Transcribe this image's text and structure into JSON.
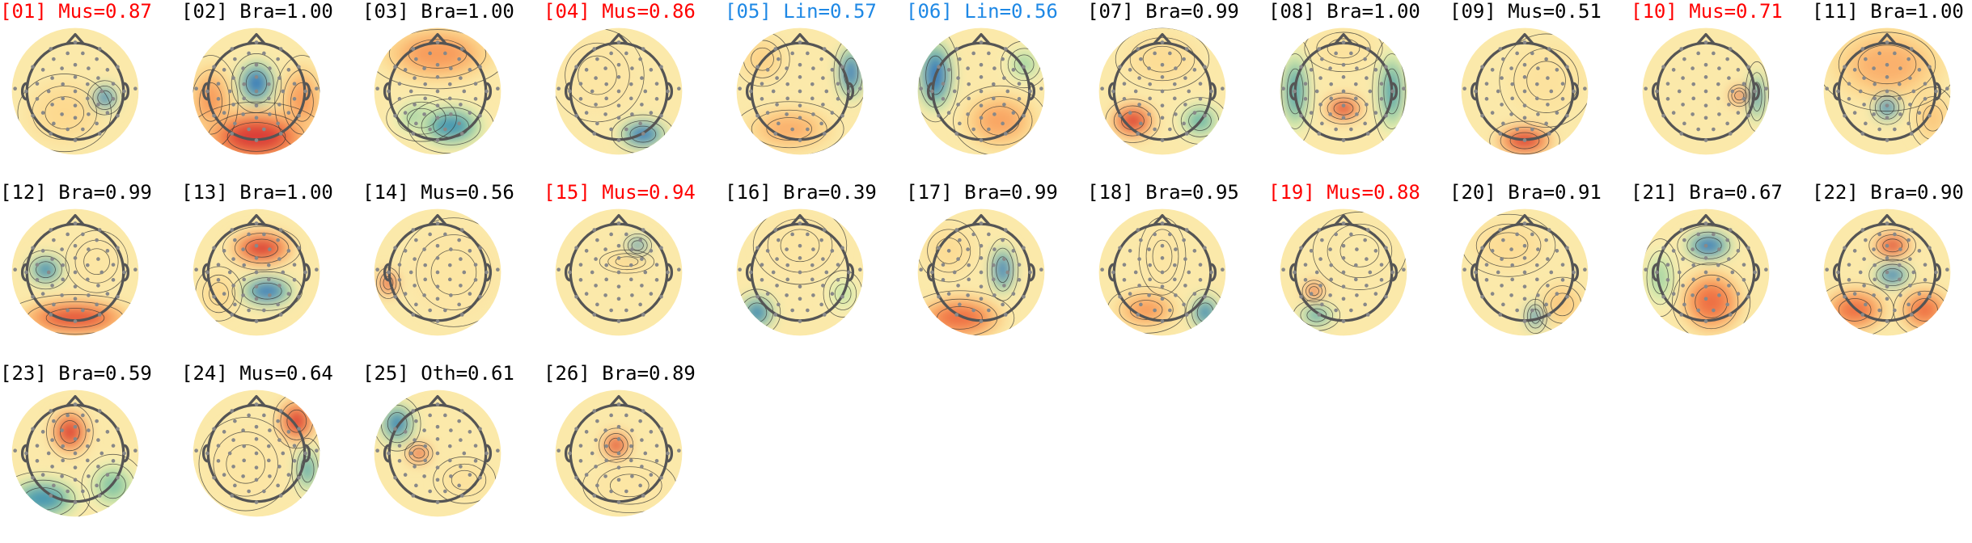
{
  "colors": {
    "Mus": "#ff0000",
    "Lin": "#1e88e5",
    "Bra": "#000000",
    "Oth": "#000000"
  },
  "components": [
    {
      "id": "01",
      "label": "Mus",
      "score": "0.87",
      "highlight": true,
      "pattern": "blob-blue-right"
    },
    {
      "id": "02",
      "label": "Bra",
      "score": "1.00",
      "highlight": false,
      "pattern": "center-blue-red-rim"
    },
    {
      "id": "03",
      "label": "Bra",
      "score": "1.00",
      "highlight": false,
      "pattern": "orange-top-teal-bottom"
    },
    {
      "id": "04",
      "label": "Mus",
      "score": "0.86",
      "highlight": true,
      "pattern": "blue-bottom-right"
    },
    {
      "id": "05",
      "label": "Lin",
      "score": "0.57",
      "highlight": true,
      "pattern": "blue-right-edge"
    },
    {
      "id": "06",
      "label": "Lin",
      "score": "0.56",
      "highlight": true,
      "pattern": "blue-left-edge"
    },
    {
      "id": "07",
      "label": "Bra",
      "score": "0.99",
      "highlight": false,
      "pattern": "red-bottom-left"
    },
    {
      "id": "08",
      "label": "Bra",
      "score": "1.00",
      "highlight": false,
      "pattern": "red-center-bottom"
    },
    {
      "id": "09",
      "label": "Mus",
      "score": "0.51",
      "highlight": false,
      "pattern": "red-bottom"
    },
    {
      "id": "10",
      "label": "Mus",
      "score": "0.71",
      "highlight": true,
      "pattern": "red-spot-right"
    },
    {
      "id": "11",
      "label": "Bra",
      "score": "1.00",
      "highlight": false,
      "pattern": "blue-center-bottom"
    },
    {
      "id": "12",
      "label": "Bra",
      "score": "0.99",
      "highlight": false,
      "pattern": "teal-left"
    },
    {
      "id": "13",
      "label": "Bra",
      "score": "1.00",
      "highlight": false,
      "pattern": "red-top-blue-bottom"
    },
    {
      "id": "14",
      "label": "Mus",
      "score": "0.56",
      "highlight": false,
      "pattern": "red-spot-left"
    },
    {
      "id": "15",
      "label": "Mus",
      "score": "0.94",
      "highlight": true,
      "pattern": "blue-spot-upper-right"
    },
    {
      "id": "16",
      "label": "Bra",
      "score": "0.39",
      "highlight": false,
      "pattern": "blue-bottom-left-edge"
    },
    {
      "id": "17",
      "label": "Bra",
      "score": "0.99",
      "highlight": false,
      "pattern": "blue-right-orange-bottom"
    },
    {
      "id": "18",
      "label": "Bra",
      "score": "0.95",
      "highlight": false,
      "pattern": "blue-bottom-right-edge"
    },
    {
      "id": "19",
      "label": "Mus",
      "score": "0.88",
      "highlight": true,
      "pattern": "red-spot-lower-left"
    },
    {
      "id": "20",
      "label": "Bra",
      "score": "0.91",
      "highlight": false,
      "pattern": "blue-bottom-center"
    },
    {
      "id": "21",
      "label": "Bra",
      "score": "0.67",
      "highlight": false,
      "pattern": "blue-top-orange-bottom"
    },
    {
      "id": "22",
      "label": "Bra",
      "score": "0.90",
      "highlight": false,
      "pattern": "red-top-blue-center"
    },
    {
      "id": "23",
      "label": "Bra",
      "score": "0.59",
      "highlight": false,
      "pattern": "red-top-blue-bottom-left"
    },
    {
      "id": "24",
      "label": "Mus",
      "score": "0.64",
      "highlight": false,
      "pattern": "red-top-right-edge"
    },
    {
      "id": "25",
      "label": "Oth",
      "score": "0.61",
      "highlight": false,
      "pattern": "red-spot-left-mid"
    },
    {
      "id": "26",
      "label": "Bra",
      "score": "0.89",
      "highlight": false,
      "pattern": "red-spot-center"
    }
  ]
}
